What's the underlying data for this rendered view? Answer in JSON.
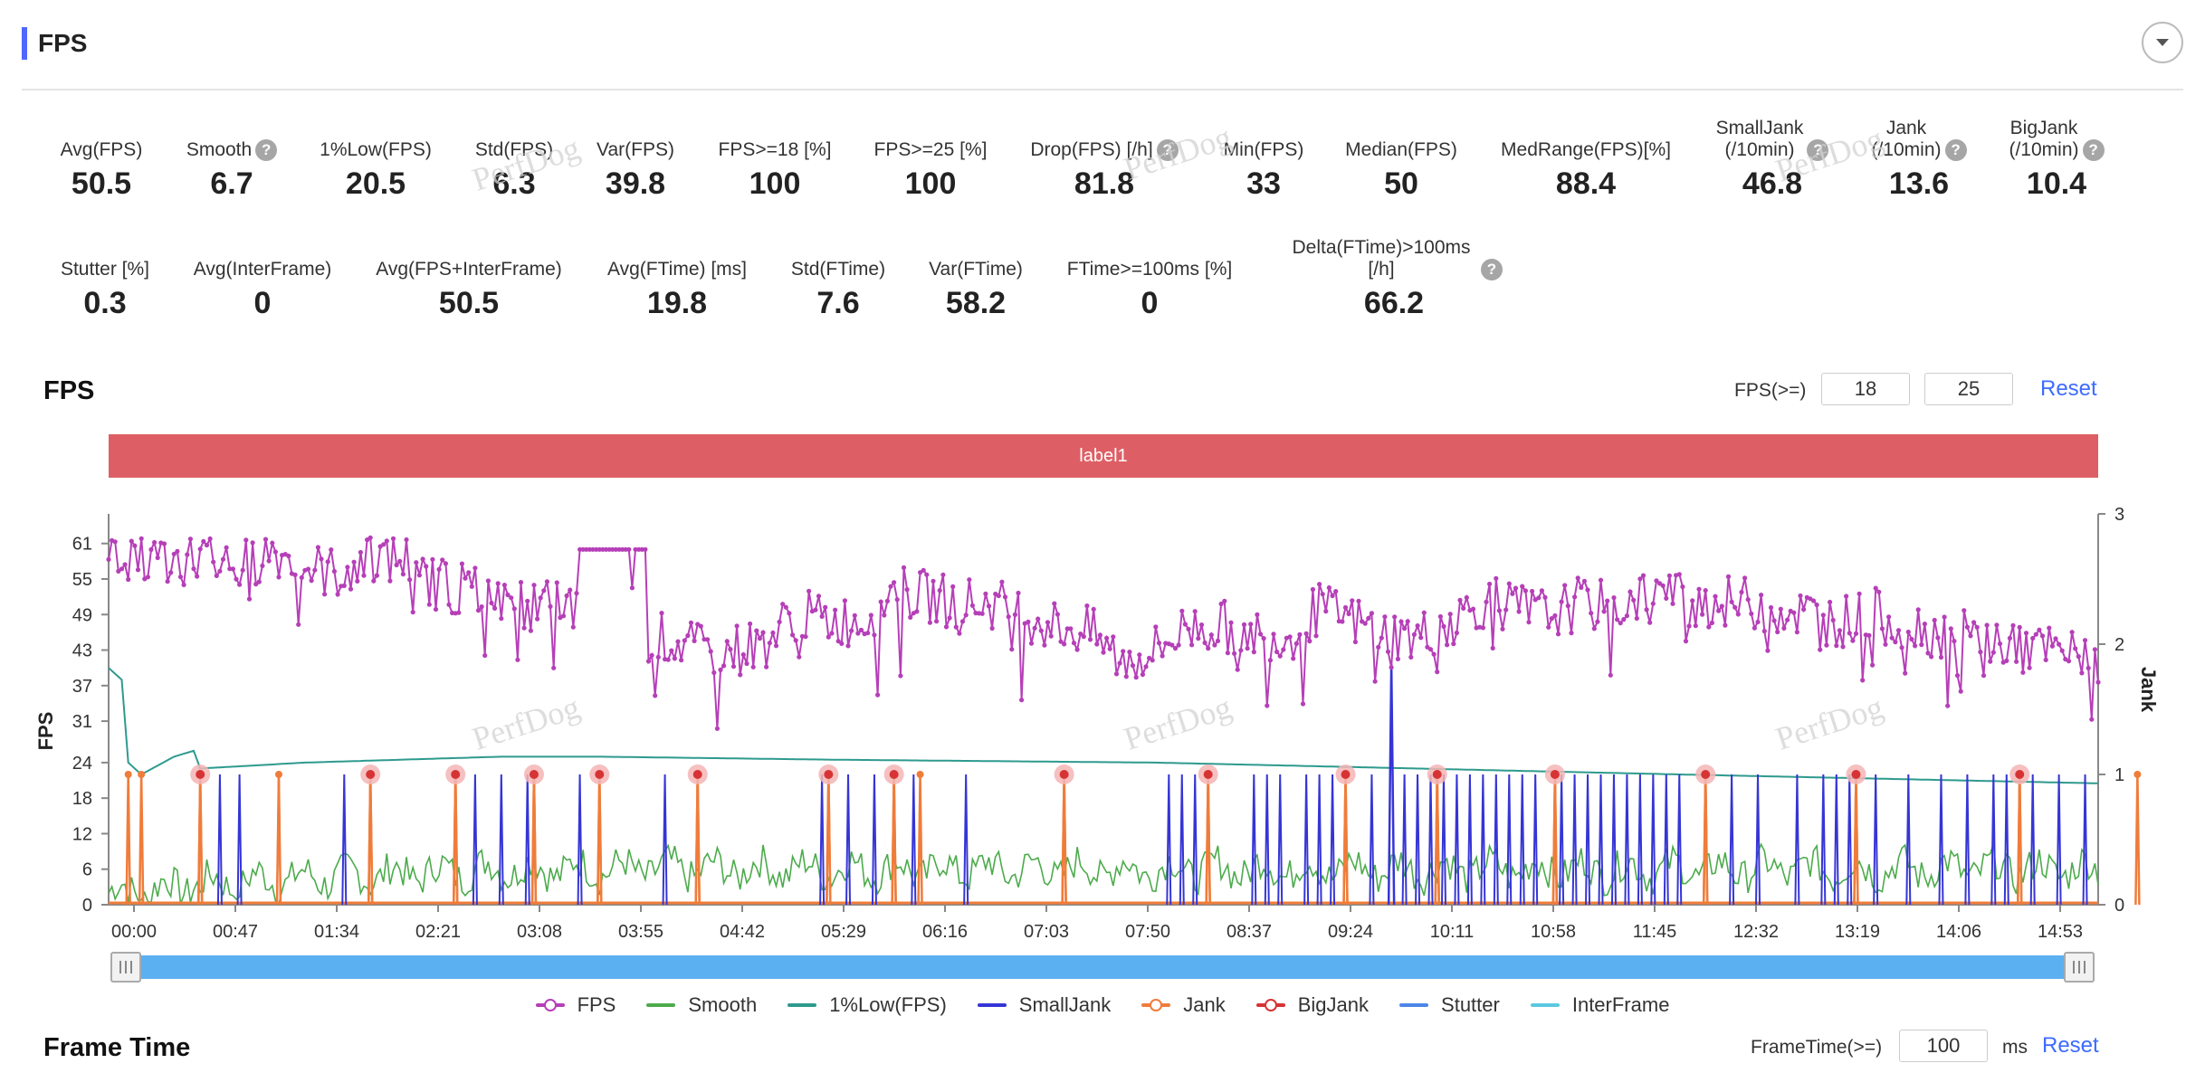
{
  "header": {
    "title": "FPS"
  },
  "stats_row1": [
    {
      "label": "Avg(FPS)",
      "value": "50.5",
      "help": false
    },
    {
      "label": "Smooth",
      "value": "6.7",
      "help": true
    },
    {
      "label": "1%Low(FPS)",
      "value": "20.5",
      "help": false
    },
    {
      "label": "Std(FPS)",
      "value": "6.3",
      "help": false
    },
    {
      "label": "Var(FPS)",
      "value": "39.8",
      "help": false
    },
    {
      "label": "FPS>=18 [%]",
      "value": "100",
      "help": false
    },
    {
      "label": "FPS>=25 [%]",
      "value": "100",
      "help": false
    },
    {
      "label": "Drop(FPS) [/h]",
      "value": "81.8",
      "help": true
    },
    {
      "label": "Min(FPS)",
      "value": "33",
      "help": false
    },
    {
      "label": "Median(FPS)",
      "value": "50",
      "help": false
    },
    {
      "label": "MedRange(FPS)[%]",
      "value": "88.4",
      "help": false
    },
    {
      "label": "SmallJank\n(/10min)",
      "value": "46.8",
      "help": true
    },
    {
      "label": "Jank\n(/10min)",
      "value": "13.6",
      "help": true
    },
    {
      "label": "BigJank\n(/10min)",
      "value": "10.4",
      "help": true
    }
  ],
  "stats_row2": [
    {
      "label": "Stutter [%]",
      "value": "0.3",
      "help": false
    },
    {
      "label": "Avg(InterFrame)",
      "value": "0",
      "help": false
    },
    {
      "label": "Avg(FPS+InterFrame)",
      "value": "50.5",
      "help": false
    },
    {
      "label": "Avg(FTime) [ms]",
      "value": "19.8",
      "help": false
    },
    {
      "label": "Std(FTime)",
      "value": "7.6",
      "help": false
    },
    {
      "label": "Var(FTime)",
      "value": "58.2",
      "help": false
    },
    {
      "label": "FTime>=100ms [%]",
      "value": "0",
      "help": false
    },
    {
      "label": "Delta(FTime)>100ms [/h]",
      "value": "66.2",
      "help": true
    }
  ],
  "watermark": "PerfDog",
  "fps_section": {
    "title": "FPS",
    "threshold_label": "FPS(>=)",
    "threshold_1": "18",
    "threshold_2": "25",
    "reset_label": "Reset",
    "band_label": "label1"
  },
  "frame_time_section": {
    "title": "Frame Time",
    "threshold_label": "FrameTime(>=)",
    "threshold_value": "100",
    "unit": "ms",
    "reset_label": "Reset"
  },
  "colors": {
    "fps": "#b63fb8",
    "smooth": "#4cab4c",
    "low1": "#2e9a8e",
    "smalljank": "#3535d6",
    "jank": "#f07c3a",
    "bigjank": "#d63434",
    "stutter": "#4c86e8",
    "interframe": "#5cc8e0",
    "band": "#dd5f65",
    "accent": "#3d6bff"
  },
  "chart_data": {
    "type": "line",
    "x_axis": {
      "ticks": [
        "00:00",
        "00:47",
        "01:34",
        "02:21",
        "03:08",
        "03:55",
        "04:42",
        "05:29",
        "06:16",
        "07:03",
        "07:50",
        "08:37",
        "09:24",
        "10:11",
        "10:58",
        "11:45",
        "12:32",
        "13:19",
        "14:06",
        "14:53"
      ]
    },
    "y_left": {
      "label": "FPS",
      "ticks": [
        0,
        6,
        12,
        18,
        24,
        31,
        37,
        43,
        49,
        55,
        61
      ],
      "range": [
        0,
        66
      ]
    },
    "y_right": {
      "label": "Jank",
      "ticks": [
        0,
        1,
        2,
        3
      ],
      "range": [
        0,
        3
      ]
    },
    "legend_position": "bottom",
    "grid": false,
    "series": [
      {
        "name": "FPS",
        "axis": "left",
        "color": "#b63fb8",
        "marker": "circle",
        "profile": [
          [
            0,
            60
          ],
          [
            5,
            59
          ],
          [
            10,
            58
          ],
          [
            15,
            59
          ],
          [
            20,
            57
          ],
          [
            25,
            60
          ],
          [
            30,
            57
          ],
          [
            35,
            56
          ],
          [
            40,
            59
          ],
          [
            47,
            58
          ],
          [
            47.5,
            55
          ],
          [
            55,
            53
          ],
          [
            60,
            52
          ],
          [
            65,
            50
          ],
          [
            70,
            51
          ],
          [
            75,
            48
          ],
          [
            80,
            45
          ],
          [
            85,
            45
          ],
          [
            90,
            43
          ],
          [
            95,
            43
          ],
          [
            100,
            44
          ],
          [
            105,
            49
          ],
          [
            110,
            48
          ],
          [
            115,
            48
          ],
          [
            120,
            53
          ],
          [
            125,
            52
          ],
          [
            130,
            51
          ],
          [
            135,
            51
          ],
          [
            140,
            49
          ],
          [
            145,
            47
          ],
          [
            150,
            46
          ],
          [
            155,
            41
          ],
          [
            160,
            43
          ],
          [
            165,
            47
          ],
          [
            170,
            47
          ],
          [
            175,
            46
          ],
          [
            180,
            45
          ],
          [
            185,
            50
          ],
          [
            190,
            48
          ],
          [
            195,
            46
          ],
          [
            200,
            45
          ],
          [
            205,
            48
          ],
          [
            210,
            51
          ],
          [
            215,
            50
          ],
          [
            220,
            49
          ],
          [
            225,
            51
          ],
          [
            230,
            50
          ],
          [
            235,
            53
          ],
          [
            240,
            52
          ],
          [
            245,
            51
          ],
          [
            250,
            51
          ],
          [
            255,
            50
          ],
          [
            260,
            49
          ],
          [
            265,
            48
          ],
          [
            270,
            49
          ],
          [
            275,
            47
          ],
          [
            280,
            46
          ],
          [
            285,
            45
          ],
          [
            290,
            44
          ],
          [
            295,
            43
          ],
          [
            300,
            42
          ],
          [
            304,
            44
          ]
        ]
      },
      {
        "name": "Smooth",
        "axis": "left",
        "color": "#4cab4c",
        "profile": [
          [
            0,
            2
          ],
          [
            20,
            4
          ],
          [
            60,
            6
          ],
          [
            120,
            6
          ],
          [
            200,
            6
          ],
          [
            304,
            6
          ]
        ]
      },
      {
        "name": "1%Low(FPS)",
        "axis": "left",
        "color": "#2e9a8e",
        "profile": [
          [
            0,
            40
          ],
          [
            2,
            38
          ],
          [
            3,
            24
          ],
          [
            5,
            22
          ],
          [
            10,
            25
          ],
          [
            13,
            26
          ],
          [
            14,
            23
          ],
          [
            30,
            24
          ],
          [
            60,
            25
          ],
          [
            75,
            25
          ],
          [
            110,
            24.5
          ],
          [
            160,
            24
          ],
          [
            200,
            23
          ],
          [
            240,
            22
          ],
          [
            304,
            20.5
          ]
        ]
      },
      {
        "name": "SmallJank",
        "axis": "right",
        "color": "#3535d6",
        "spikes": [
          17,
          20,
          26,
          36,
          40,
          56,
          60,
          64,
          72,
          85,
          109,
          113,
          117,
          120,
          123,
          131,
          162,
          164,
          166,
          175,
          177,
          179,
          183,
          185,
          187,
          193,
          198,
          200,
          202,
          204,
          206,
          208,
          210,
          212,
          214,
          216,
          218,
          222,
          224,
          226,
          228,
          230,
          232,
          234,
          236,
          238,
          240,
          244,
          248,
          252,
          258,
          262,
          264,
          266,
          270,
          275,
          280,
          284,
          288,
          290,
          294,
          298,
          302
        ]
      },
      {
        "name": "Jank",
        "axis": "right",
        "color": "#f07c3a",
        "spikes": [
          3,
          5,
          14,
          26,
          40,
          53,
          65,
          75,
          90,
          110,
          120,
          124,
          146,
          168,
          189,
          203,
          221,
          244,
          267,
          292,
          310
        ]
      },
      {
        "name": "BigJank",
        "axis": "right",
        "color": "#d63434",
        "spikes": [
          14,
          40,
          53,
          65,
          75,
          90,
          110,
          120,
          146,
          168,
          189,
          203,
          221,
          244,
          267,
          292
        ]
      },
      {
        "name": "Stutter",
        "axis": "right",
        "color": "#4c86e8"
      },
      {
        "name": "InterFrame",
        "axis": "right",
        "color": "#5cc8e0"
      }
    ]
  },
  "slider": {
    "start": 0,
    "end": 100
  }
}
